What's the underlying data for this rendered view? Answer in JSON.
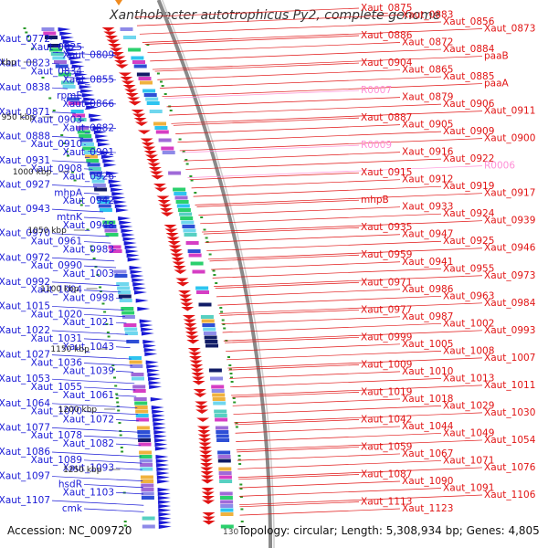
{
  "header": {
    "title": "Xanthobacter autotrophicus Py2, complete genome"
  },
  "footer": {
    "accession": "Accession: NC_009720",
    "topology": "Topology: circular; Length: 5,308,934 bp; Genes: 4,805",
    "partial_tick": "130"
  },
  "kbp_ticks": [
    "900 kbp",
    "950 kbp",
    "1000 kbp",
    "1050 kbp",
    "1100 kbp",
    "1150 kbp",
    "1200 kbp",
    "1250 kbp"
  ],
  "colors": {
    "left_strand": "#1a1ad6",
    "right_strand": "#e11414",
    "rna_label": "#ff8fd6",
    "backbone": "#8a8a8a"
  },
  "left_labels": [
    "Xaut_0772",
    "Xaut_0825",
    "Xaut_0809",
    "Xaut_0823",
    "Xaut_0834",
    "Xaut_0855",
    "Xaut_0838",
    "rpmE",
    "Xaut_0866",
    "Xaut_0871",
    "Xaut_0903",
    "Xaut_0882",
    "Xaut_0888",
    "Xaut_0910",
    "Xaut_0901",
    "Xaut_0931",
    "Xaut_0908",
    "Xaut_0926",
    "Xaut_0927",
    "mhpA",
    "Xaut_0942",
    "Xaut_0943",
    "mtnK",
    "Xaut_0948",
    "Xaut_0970",
    "Xaut_0961",
    "Xaut_0983",
    "Xaut_0972",
    "Xaut_0990",
    "Xaut_1003",
    "Xaut_0992",
    "Xaut_1004",
    "Xaut_0998",
    "Xaut_1015",
    "Xaut_1020",
    "Xaut_1021",
    "Xaut_1022",
    "Xaut_1031",
    "Xaut_1043",
    "Xaut_1027",
    "Xaut_1036",
    "Xaut_1039",
    "Xaut_1053",
    "Xaut_1055",
    "Xaut_1061",
    "Xaut_1064",
    "Xaut_1070",
    "Xaut_1072",
    "Xaut_1077",
    "Xaut_1078",
    "Xaut_1082",
    "Xaut_1086",
    "Xaut_1089",
    "Xaut_1093",
    "Xaut_1097",
    "hsdR",
    "Xaut_1103",
    "Xaut_1107",
    "cmk"
  ],
  "right_labels": [
    "Xaut_0875",
    "Xaut_0883",
    "Xaut_0856",
    "Xaut_0873",
    "Xaut_0886",
    "Xaut_0872",
    "Xaut_0884",
    "paaB",
    "Xaut_0904",
    "Xaut_0865",
    "Xaut_0885",
    "paaA",
    "R0007",
    "Xaut_0879",
    "Xaut_0906",
    "Xaut_0911",
    "Xaut_0887",
    "Xaut_0905",
    "Xaut_0909",
    "Xaut_0900",
    "R0009",
    "Xaut_0916",
    "Xaut_0922",
    "R0006",
    "Xaut_0915",
    "Xaut_0912",
    "Xaut_0919",
    "Xaut_0917",
    "mhpB",
    "Xaut_0933",
    "Xaut_0924",
    "Xaut_0939",
    "Xaut_0935",
    "Xaut_0947",
    "Xaut_0925",
    "Xaut_0946",
    "Xaut_0959",
    "Xaut_0941",
    "Xaut_0955",
    "Xaut_0973",
    "Xaut_0971",
    "Xaut_0986",
    "Xaut_0963",
    "Xaut_0984",
    "Xaut_0977",
    "Xaut_0987",
    "Xaut_1002",
    "Xaut_0993",
    "Xaut_0999",
    "Xaut_1005",
    "Xaut_1008",
    "Xaut_1007",
    "Xaut_1009",
    "Xaut_1010",
    "Xaut_1013",
    "Xaut_1011",
    "Xaut_1019",
    "Xaut_1018",
    "Xaut_1029",
    "Xaut_1030",
    "Xaut_1042",
    "Xaut_1044",
    "Xaut_1049",
    "Xaut_1054",
    "Xaut_1059",
    "Xaut_1067",
    "Xaut_1071",
    "Xaut_1076",
    "Xaut_1087",
    "Xaut_1090",
    "Xaut_1091",
    "Xaut_1106",
    "Xaut_1113",
    "Xaut_1123"
  ],
  "pink_labels": [
    "R0007",
    "R0009",
    "R0006"
  ]
}
